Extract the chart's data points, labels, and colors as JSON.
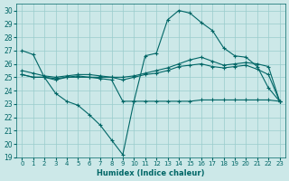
{
  "xlabel": "Humidex (Indice chaleur)",
  "bg_color": "#cce8e8",
  "line_color": "#006666",
  "grid_color": "#99cccc",
  "xlim": [
    -0.5,
    23.5
  ],
  "ylim": [
    19,
    30.5
  ],
  "yticks": [
    19,
    20,
    21,
    22,
    23,
    24,
    25,
    26,
    27,
    28,
    29,
    30
  ],
  "xticks": [
    0,
    1,
    2,
    3,
    4,
    5,
    6,
    7,
    8,
    9,
    10,
    11,
    12,
    13,
    14,
    15,
    16,
    17,
    18,
    19,
    20,
    21,
    22,
    23
  ],
  "series": [
    {
      "x": [
        0,
        1,
        2,
        3,
        4,
        5,
        6,
        7,
        8,
        9,
        10,
        11,
        12,
        13,
        14,
        15,
        16,
        17,
        18,
        19,
        20,
        21,
        22,
        23
      ],
      "y": [
        27.0,
        26.7,
        25.0,
        23.8,
        23.2,
        22.9,
        22.2,
        21.4,
        20.3,
        19.2,
        23.2,
        26.6,
        26.8,
        29.3,
        30.0,
        29.8,
        29.1,
        28.5,
        27.2,
        26.6,
        26.5,
        25.8,
        24.2,
        23.2
      ]
    },
    {
      "x": [
        0,
        1,
        2,
        3,
        4,
        5,
        6,
        7,
        8,
        9,
        10,
        11,
        12,
        13,
        14,
        15,
        16,
        17,
        18,
        19,
        20,
        21,
        22,
        23
      ],
      "y": [
        25.5,
        25.3,
        25.1,
        25.0,
        25.1,
        25.2,
        25.2,
        25.1,
        25.0,
        25.0,
        25.1,
        25.3,
        25.5,
        25.7,
        26.0,
        26.3,
        26.5,
        26.2,
        25.9,
        26.0,
        26.1,
        26.0,
        25.8,
        23.2
      ]
    },
    {
      "x": [
        0,
        1,
        2,
        3,
        4,
        5,
        6,
        7,
        8,
        9,
        10,
        11,
        12,
        13,
        14,
        15,
        16,
        17,
        18,
        19,
        20,
        21,
        22,
        23
      ],
      "y": [
        25.2,
        25.0,
        25.0,
        24.9,
        25.0,
        25.0,
        25.0,
        25.0,
        25.0,
        24.8,
        25.0,
        25.2,
        25.3,
        25.5,
        25.8,
        25.9,
        26.0,
        25.8,
        25.7,
        25.8,
        25.9,
        25.6,
        25.2,
        23.2
      ]
    },
    {
      "x": [
        0,
        1,
        2,
        3,
        4,
        5,
        6,
        7,
        8,
        9,
        10,
        11,
        12,
        13,
        14,
        15,
        16,
        17,
        18,
        19,
        20,
        21,
        22,
        23
      ],
      "y": [
        25.2,
        25.0,
        25.0,
        24.8,
        25.0,
        25.1,
        25.0,
        24.9,
        24.8,
        23.2,
        23.2,
        23.2,
        23.2,
        23.2,
        23.2,
        23.2,
        23.3,
        23.3,
        23.3,
        23.3,
        23.3,
        23.3,
        23.3,
        23.2
      ]
    }
  ]
}
